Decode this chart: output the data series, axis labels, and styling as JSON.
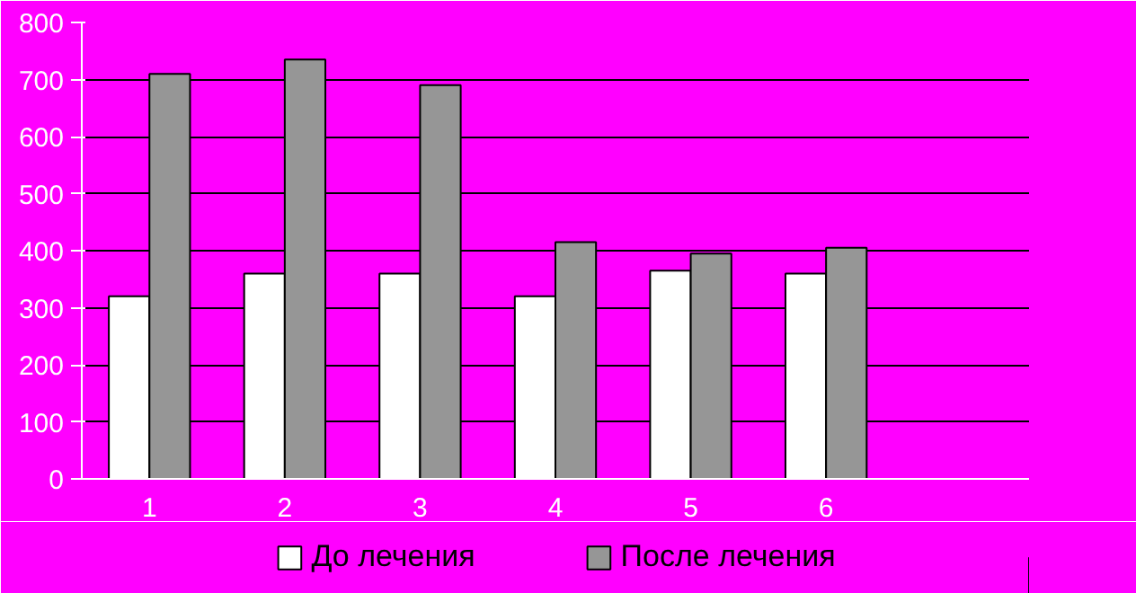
{
  "chart_data": {
    "type": "bar",
    "categories": [
      "1",
      "2",
      "3",
      "4",
      "5",
      "6",
      null
    ],
    "series": [
      {
        "name": "До лечения",
        "color": "#ffffff",
        "values": [
          320,
          360,
          360,
          320,
          365,
          360,
          null
        ]
      },
      {
        "name": "После лечения",
        "color": "#969696",
        "values": [
          710,
          735,
          690,
          415,
          395,
          405,
          null
        ]
      }
    ],
    "ylim": [
      0,
      800
    ],
    "yticks": [
      0,
      100,
      200,
      300,
      400,
      500,
      600,
      700,
      800
    ],
    "grid": "y",
    "legend": "bottom"
  }
}
